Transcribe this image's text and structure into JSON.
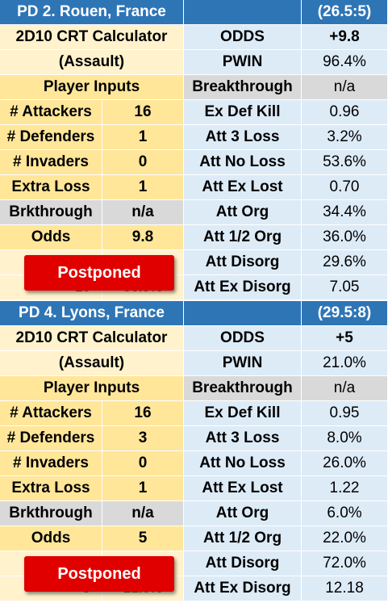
{
  "panels": [
    {
      "title": "PD 2.  Rouen, France",
      "code": "(26.5:5)",
      "calc_title_1": "2D10 CRT Calculator",
      "calc_title_2": "(Assault)",
      "odds_label": "ODDS",
      "odds_value": "+9.8",
      "pwin_label": "PWIN",
      "pwin_value": "96.4%",
      "player_inputs": "Player Inputs",
      "breakthrough_label": "Breakthrough",
      "breakthrough_value": "n/a",
      "inputs": [
        {
          "label": "# Attackers",
          "value": "16"
        },
        {
          "label": "# Defenders",
          "value": "1"
        },
        {
          "label": "# Invaders",
          "value": "0"
        },
        {
          "label": "Extra Loss",
          "value": "1"
        },
        {
          "label": "Brkthrough",
          "value": "n/a"
        },
        {
          "label": "Odds",
          "value": "9.8"
        }
      ],
      "results": [
        {
          "label": "Ex Def Kill",
          "value": "0.96"
        },
        {
          "label": "Att 3 Loss",
          "value": "3.2%"
        },
        {
          "label": "Att No Loss",
          "value": "53.6%"
        },
        {
          "label": "Att Ex Lost",
          "value": "0.70"
        },
        {
          "label": "Att Org",
          "value": "34.4%"
        },
        {
          "label": "Att 1/2 Org",
          "value": "36.0%"
        },
        {
          "label": "Att Disorg",
          "value": "29.6%"
        },
        {
          "label": "Att Ex Disorg",
          "value": "7.05"
        }
      ],
      "hidden_partial_left": "+10",
      "hidden_partial_right": "96.9%",
      "postponed": "Postponed"
    },
    {
      "title": "PD 4.  Lyons, France",
      "code": "(29.5:8)",
      "calc_title_1": "2D10 CRT Calculator",
      "calc_title_2": "(Assault)",
      "odds_label": "ODDS",
      "odds_value": "+5",
      "pwin_label": "PWIN",
      "pwin_value": "21.0%",
      "player_inputs": "Player Inputs",
      "breakthrough_label": "Breakthrough",
      "breakthrough_value": "n/a",
      "inputs": [
        {
          "label": "# Attackers",
          "value": "16"
        },
        {
          "label": "# Defenders",
          "value": "3"
        },
        {
          "label": "# Invaders",
          "value": "0"
        },
        {
          "label": "Extra Loss",
          "value": "1"
        },
        {
          "label": "Brkthrough",
          "value": "n/a"
        },
        {
          "label": "Odds",
          "value": "5"
        }
      ],
      "results": [
        {
          "label": "Ex Def Kill",
          "value": "0.95"
        },
        {
          "label": "Att 3 Loss",
          "value": "8.0%"
        },
        {
          "label": "Att No Loss",
          "value": "26.0%"
        },
        {
          "label": "Att Ex Lost",
          "value": "1.22"
        },
        {
          "label": "Att Org",
          "value": "6.0%"
        },
        {
          "label": "Att 1/2 Org",
          "value": "22.0%"
        },
        {
          "label": "Att Disorg",
          "value": "72.0%"
        },
        {
          "label": "Att Ex Disorg",
          "value": "12.18"
        }
      ],
      "hidden_partial_left": "5",
      "hidden_partial_right": "21.0%",
      "postponed": "Postponed"
    }
  ]
}
